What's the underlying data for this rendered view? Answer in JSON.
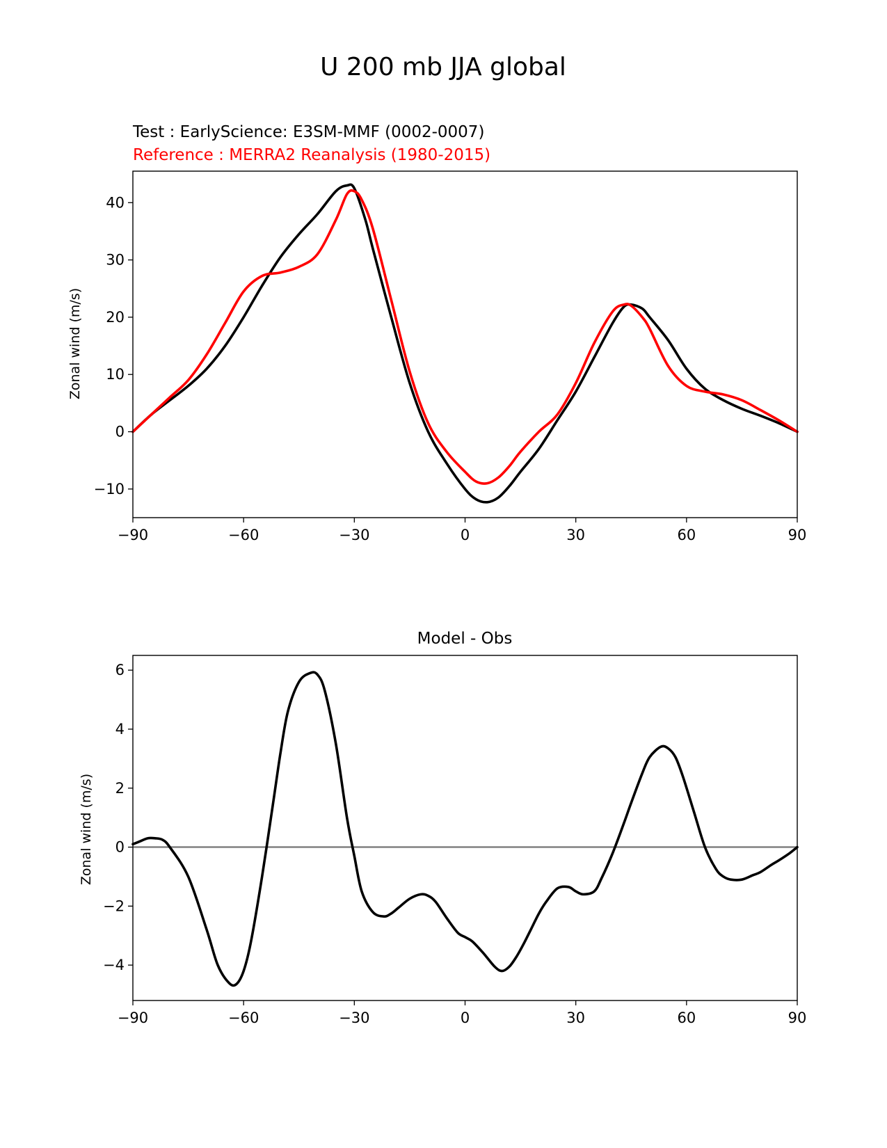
{
  "figure_title": "U 200 mb JJA global",
  "chart_data": [
    {
      "type": "line",
      "test_label": "Test : EarlyScience: E3SM-MMF (0002-0007)",
      "reference_label": "Reference : MERRA2 Reanalysis (1980-2015)",
      "title": "",
      "xlabel": "",
      "ylabel": "Zonal wind (m/s)",
      "xlim": [
        -90,
        90
      ],
      "ylim": [
        -15,
        45.5
      ],
      "xticks": [
        -90,
        -60,
        -30,
        0,
        30,
        60,
        90
      ],
      "yticks": [
        -10,
        0,
        10,
        20,
        30,
        40
      ],
      "grid": false,
      "series": [
        {
          "color": "#000000",
          "x": [
            -90,
            -85,
            -80,
            -75,
            -70,
            -65,
            -60,
            -55,
            -50,
            -45,
            -40,
            -35,
            -32,
            -30,
            -27,
            -25,
            -20,
            -15,
            -10,
            -5,
            0,
            3,
            6,
            9,
            12,
            15,
            20,
            25,
            30,
            35,
            40,
            43,
            45,
            48,
            50,
            55,
            60,
            65,
            70,
            75,
            80,
            85,
            90
          ],
          "y": [
            0,
            3,
            5.5,
            8,
            11,
            15,
            20,
            25.5,
            30.5,
            34.5,
            38,
            42,
            43,
            42.5,
            37,
            32,
            20,
            8.5,
            0,
            -5.5,
            -10,
            -11.8,
            -12.3,
            -11.5,
            -9.5,
            -7,
            -3,
            2,
            7,
            13,
            19,
            21.8,
            22.2,
            21.5,
            20,
            16,
            11,
            7.5,
            5.5,
            4,
            2.8,
            1.5,
            0
          ]
        },
        {
          "color": "#ff0000",
          "x": [
            -90,
            -85,
            -80,
            -75,
            -70,
            -65,
            -60,
            -55,
            -50,
            -45,
            -40,
            -35,
            -32,
            -30,
            -28,
            -25,
            -20,
            -15,
            -10,
            -5,
            0,
            3,
            6,
            9,
            12,
            15,
            20,
            25,
            30,
            35,
            40,
            43,
            45,
            48,
            50,
            55,
            60,
            65,
            70,
            75,
            80,
            85,
            90
          ],
          "y": [
            0,
            3,
            6,
            9,
            13.5,
            19,
            24.5,
            27.2,
            27.8,
            28.8,
            31,
            37,
            41.5,
            42,
            40.5,
            35.5,
            23,
            10.5,
            1.5,
            -3.5,
            -7,
            -8.7,
            -9,
            -8,
            -6,
            -3.5,
            0,
            3,
            8.5,
            15.5,
            21,
            22.2,
            22,
            20,
            18,
            11.5,
            8,
            7,
            6.5,
            5.5,
            3.8,
            2,
            0
          ]
        }
      ]
    },
    {
      "type": "line",
      "title": "Model - Obs",
      "xlabel": "",
      "ylabel": "Zonal wind (m/s)",
      "xlim": [
        -90,
        90
      ],
      "ylim": [
        -5.2,
        6.5
      ],
      "xticks": [
        -90,
        -60,
        -30,
        0,
        30,
        60,
        90
      ],
      "yticks": [
        -4,
        -2,
        0,
        2,
        4,
        6
      ],
      "grid": false,
      "zero_line_color": "#808080",
      "series": [
        {
          "color": "#000000",
          "x": [
            -90,
            -88,
            -86,
            -84,
            -82,
            -80,
            -75,
            -70,
            -67,
            -64,
            -62,
            -60,
            -58,
            -55,
            -52,
            -50,
            -48,
            -45,
            -42,
            -40,
            -38,
            -35,
            -32,
            -30,
            -28,
            -25,
            -22,
            -20,
            -18,
            -15,
            -12,
            -10,
            -8,
            -5,
            -2,
            0,
            2,
            5,
            8,
            10,
            12,
            14,
            16,
            18,
            20,
            22,
            25,
            28,
            30,
            32,
            35,
            37,
            40,
            43,
            45,
            48,
            50,
            53,
            55,
            57,
            59,
            62,
            65,
            68,
            70,
            72,
            75,
            78,
            80,
            83,
            85,
            88,
            90
          ],
          "y": [
            0.1,
            0.2,
            0.3,
            0.3,
            0.25,
            0,
            -1,
            -2.8,
            -4,
            -4.6,
            -4.65,
            -4.2,
            -3.2,
            -1,
            1.5,
            3.2,
            4.6,
            5.6,
            5.9,
            5.85,
            5.3,
            3.5,
            1,
            -0.3,
            -1.5,
            -2.2,
            -2.35,
            -2.25,
            -2.05,
            -1.75,
            -1.6,
            -1.65,
            -1.85,
            -2.4,
            -2.9,
            -3.05,
            -3.2,
            -3.6,
            -4.05,
            -4.2,
            -4.05,
            -3.7,
            -3.25,
            -2.75,
            -2.25,
            -1.85,
            -1.4,
            -1.35,
            -1.5,
            -1.6,
            -1.5,
            -1.05,
            -0.2,
            0.8,
            1.5,
            2.5,
            3.05,
            3.4,
            3.35,
            3.05,
            2.4,
            1.2,
            0,
            -0.75,
            -1,
            -1.1,
            -1.1,
            -0.95,
            -0.85,
            -0.6,
            -0.45,
            -0.2,
            0
          ]
        }
      ]
    }
  ]
}
